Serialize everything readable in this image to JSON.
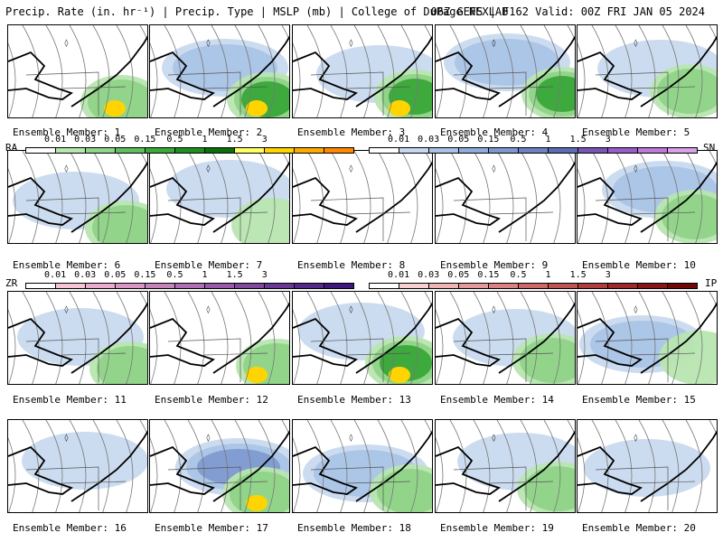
{
  "header": {
    "left": "Precip. Rate (in. hr⁻¹) | Precip. Type | MSLP (mb) | College of DuPage NEXLAB",
    "right": "06Z GEFS | F162 Valid: 00Z FRI JAN 05 2024"
  },
  "member_prefix": "Ensemble Member:",
  "members": [
    {
      "num": "1",
      "rain": 0.4,
      "snow": 0.1,
      "heavy": true
    },
    {
      "num": "2",
      "rain": 0.6,
      "snow": 0.5,
      "heavy": true
    },
    {
      "num": "3",
      "rain": 0.5,
      "snow": 0.35,
      "heavy": true
    },
    {
      "num": "4",
      "rain": 0.6,
      "snow": 0.5,
      "heavy": false
    },
    {
      "num": "5",
      "rain": 0.4,
      "snow": 0.35,
      "heavy": false
    },
    {
      "num": "6",
      "rain": 0.3,
      "snow": 0.3,
      "heavy": false
    },
    {
      "num": "7",
      "rain": 0.1,
      "snow": 0.2,
      "heavy": false
    },
    {
      "num": "8",
      "rain": 0.05,
      "snow": 0.1,
      "heavy": false
    },
    {
      "num": "9",
      "rain": 0.05,
      "snow": 0.1,
      "heavy": false
    },
    {
      "num": "10",
      "rain": 0.3,
      "snow": 0.5,
      "heavy": false
    },
    {
      "num": "11",
      "rain": 0.35,
      "snow": 0.2,
      "heavy": false
    },
    {
      "num": "12",
      "rain": 0.4,
      "snow": 0.1,
      "heavy": true
    },
    {
      "num": "13",
      "rain": 0.5,
      "snow": 0.3,
      "heavy": true
    },
    {
      "num": "14",
      "rain": 0.4,
      "snow": 0.2,
      "heavy": false
    },
    {
      "num": "15",
      "rain": 0.2,
      "snow": 0.6,
      "heavy": false
    },
    {
      "num": "16",
      "rain": 0.05,
      "snow": 0.25,
      "heavy": false
    },
    {
      "num": "17",
      "rain": 0.4,
      "snow": 0.7,
      "heavy": true
    },
    {
      "num": "18",
      "rain": 0.4,
      "snow": 0.4,
      "heavy": false
    },
    {
      "num": "19",
      "rain": 0.3,
      "snow": 0.15,
      "heavy": false
    },
    {
      "num": "20",
      "rain": 0.05,
      "snow": 0.2,
      "heavy": false
    }
  ],
  "scales": [
    {
      "type": "RA",
      "ticks": [
        "0.01",
        "0.03",
        "0.05",
        "0.15",
        "0.5",
        "1",
        "1.5",
        "3"
      ],
      "colors": [
        "#ffffff",
        "#b8e6b0",
        "#8fd488",
        "#5fbf5f",
        "#3aa83a",
        "#1f8f1f",
        "#0b700b",
        "#ffff66",
        "#ffd400",
        "#ffaa00",
        "#ff8800"
      ]
    },
    {
      "type": "SN",
      "ticks": [
        "0.01",
        "0.03",
        "0.05",
        "0.15",
        "0.5",
        "1",
        "1.5",
        "3"
      ],
      "colors": [
        "#ffffff",
        "#c7d8ee",
        "#a9c3e6",
        "#8fadda",
        "#7d98cf",
        "#6c82c2",
        "#5e6cb4",
        "#7a55b8",
        "#9a5cc8",
        "#bd7ad8",
        "#d8a0e6"
      ]
    },
    {
      "type": "ZR",
      "ticks": [
        "0.01",
        "0.03",
        "0.05",
        "0.15",
        "0.5",
        "1",
        "1.5",
        "3"
      ],
      "colors": [
        "#ffffff",
        "#f6c6d6",
        "#eaaccc",
        "#d996c4",
        "#c682bb",
        "#b06fb2",
        "#985aa8",
        "#80489e",
        "#6a3896",
        "#55288a",
        "#40187c"
      ]
    },
    {
      "type": "IP",
      "ticks": [
        "0.01",
        "0.03",
        "0.05",
        "0.15",
        "0.5",
        "1",
        "1.5",
        "3"
      ],
      "colors": [
        "#ffffff",
        "#f8d0d0",
        "#efb4b4",
        "#e49a9a",
        "#d98282",
        "#cc6a6a",
        "#be5454",
        "#ae3e3e",
        "#9c2a2a",
        "#881818",
        "#700808"
      ]
    }
  ]
}
